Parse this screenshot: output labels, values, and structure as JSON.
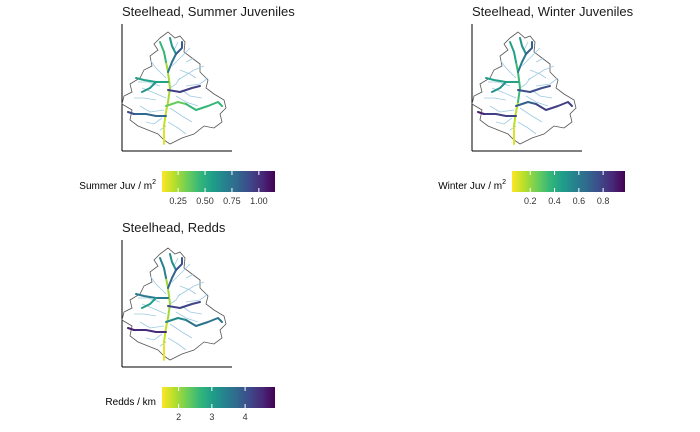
{
  "chart_data": [
    {
      "type": "map",
      "title": "Steelhead, Summer Juveniles",
      "legend": {
        "title_text": "Summer Juv / m",
        "title_sup": "2",
        "ticks": [
          0.25,
          0.5,
          0.75,
          1.0
        ],
        "tick_labels": [
          "0.25",
          "0.50",
          "0.75",
          "1.00"
        ],
        "range": [
          0.1,
          1.15
        ],
        "scale": "viridis (reversed: yellow = low, purple = high)"
      },
      "reach_values": {
        "mainstem_low": 0.15,
        "mainstem_mid": 0.2,
        "mainstem_upper": 0.25,
        "west_branch": 0.55,
        "west_branch_mid": 0.6,
        "west_upper": 0.45,
        "north_branch": 0.75,
        "north_fork_west": 0.6,
        "north_fork_east": 0.85,
        "east_branch": 0.95,
        "southeast_branch": 0.45,
        "southeast_mid": 0.35,
        "southwest_branch": 0.8,
        "southwest_tip": 0.9
      },
      "basin_outline_color": "#555555",
      "minor_stream_color": "#9ecae1"
    },
    {
      "type": "map",
      "title": "Steelhead, Winter Juveniles",
      "legend": {
        "title_text": "Winter Juv / m",
        "title_sup": "2",
        "ticks": [
          0.2,
          0.4,
          0.6,
          0.8
        ],
        "tick_labels": [
          "0.2",
          "0.4",
          "0.6",
          "0.8"
        ],
        "range": [
          0.05,
          0.98
        ],
        "scale": "viridis (reversed: yellow = low, purple = high)"
      },
      "reach_values": {
        "mainstem_low": 0.1,
        "mainstem_mid": 0.15,
        "mainstem_upper": 0.35,
        "west_branch": 0.45,
        "west_branch_mid": 0.5,
        "west_upper": 0.45,
        "north_branch": 0.6,
        "north_fork_west": 0.5,
        "north_fork_east": 0.7,
        "east_branch": 0.75,
        "southeast_branch": 0.8,
        "southeast_mid": 0.7,
        "southwest_branch": 0.8,
        "southwest_tip": 0.9
      },
      "basin_outline_color": "#555555",
      "minor_stream_color": "#9ecae1"
    },
    {
      "type": "map",
      "title": "Steelhead, Redds",
      "legend": {
        "title_text": "Redds / km",
        "title_sup": "",
        "ticks": [
          2,
          3,
          4
        ],
        "tick_labels": [
          "2",
          "3",
          "4"
        ],
        "range": [
          1.5,
          4.9
        ],
        "scale": "viridis (reversed: yellow = low, purple = high)"
      },
      "reach_values": {
        "mainstem_low": 1.6,
        "mainstem_mid": 1.8,
        "mainstem_upper": 2.0,
        "west_branch": 3.5,
        "west_branch_mid": 3.0,
        "west_upper": 3.4,
        "north_branch": 3.8,
        "north_fork_west": 3.2,
        "north_fork_east": 4.0,
        "east_branch": 4.2,
        "southeast_branch": 3.6,
        "southeast_mid": 3.3,
        "southwest_branch": 4.5,
        "southwest_tip": 4.6
      },
      "basin_outline_color": "#555555",
      "minor_stream_color": "#9ecae1"
    }
  ]
}
